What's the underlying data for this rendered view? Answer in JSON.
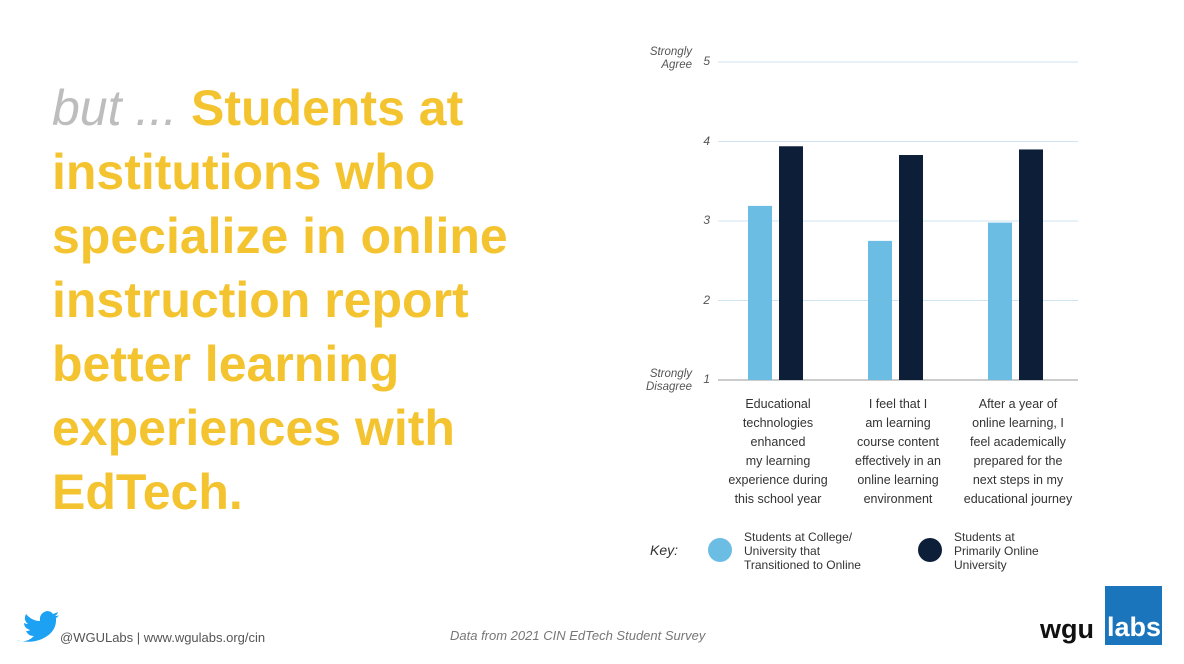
{
  "headline": {
    "prefix": "but ...",
    "lines": [
      "Students at",
      "institutions who",
      "specialize in online",
      "instruction report",
      "better learning",
      "experiences with",
      "EdTech."
    ]
  },
  "chart_data": {
    "type": "bar",
    "annotations": [
      "Strongly\nAgree",
      "Strongly\nDisagree"
    ],
    "categories": [
      "Educational\ntechnologies\nenhanced\nmy learning\nexperience during\nthis school year",
      "I feel that I\nam learning\ncourse content\neffectively in an\nonline learning\nenvironment",
      "After a year of\nonline learning, I\nfeel academically\nprepared for the\nnext steps in my\neducational journey"
    ],
    "series": [
      {
        "name": "Students at College/\nUniversity that\nTransitioned to Online",
        "color": "#6bbde3",
        "values": [
          3.19,
          2.75,
          2.98
        ]
      },
      {
        "name": "Students at\nPrimarily Online\nUniversity",
        "color": "#0d1f38",
        "values": [
          3.94,
          3.83,
          3.9
        ]
      }
    ],
    "ylim": [
      1,
      5
    ],
    "yticks": [
      1,
      2,
      3,
      4,
      5
    ],
    "grid": true,
    "legend_title": "Key:"
  },
  "footer": {
    "handle": "@WGULabs | www.wgulabs.org/cin",
    "source": "Data from 2021 CIN EdTech Student Survey",
    "logo_left": "wgu",
    "logo_right": "labs"
  }
}
